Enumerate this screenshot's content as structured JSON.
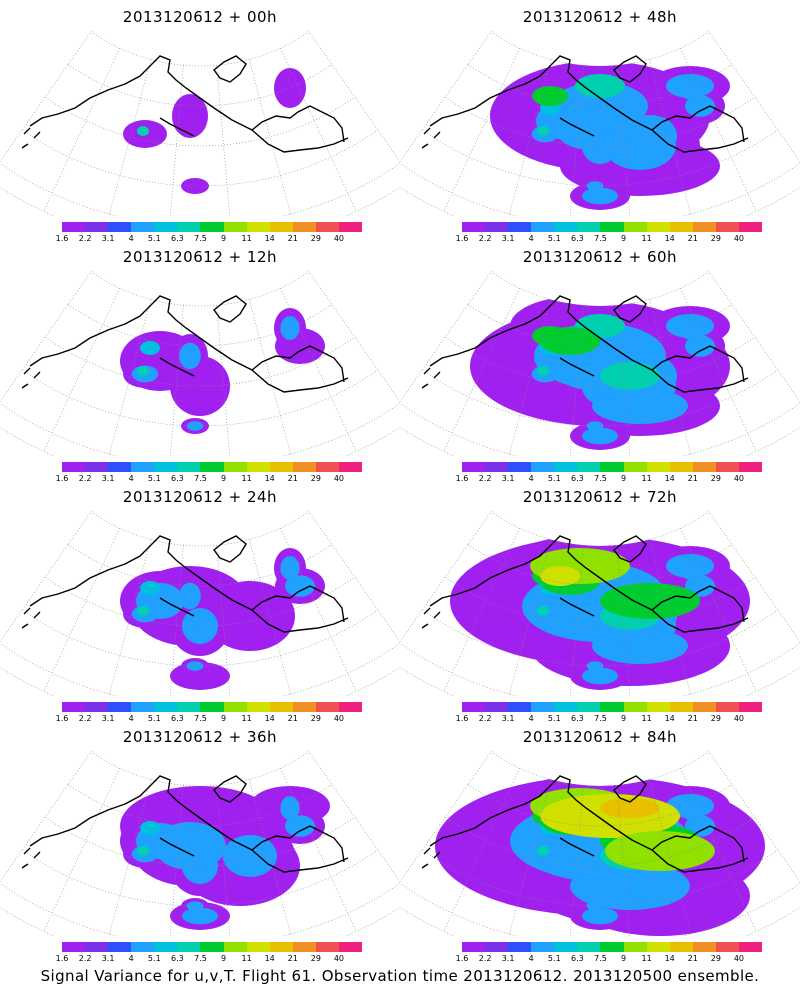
{
  "panels": [
    {
      "title": "2013120612 + 00h",
      "level": 0
    },
    {
      "title": "2013120612 + 48h",
      "level": 4
    },
    {
      "title": "2013120612 + 12h",
      "level": 1
    },
    {
      "title": "2013120612 + 60h",
      "level": 5
    },
    {
      "title": "2013120612 + 24h",
      "level": 2
    },
    {
      "title": "2013120612 + 72h",
      "level": 6
    },
    {
      "title": "2013120612 + 36h",
      "level": 3
    },
    {
      "title": "2013120612 + 84h",
      "level": 7
    }
  ],
  "colorbar": {
    "labels": [
      "1.6",
      "2.2",
      "3.1",
      "4",
      "5.1",
      "6.3",
      "7.5",
      "9",
      "11",
      "14",
      "21",
      "29",
      "40"
    ],
    "colors": [
      "#a020f0",
      "#7c30e8",
      "#3050ff",
      "#20a0ff",
      "#00c0e0",
      "#00d0b0",
      "#00cc30",
      "#90e000",
      "#d0e000",
      "#e8c000",
      "#f09020",
      "#f05050",
      "#f0207f"
    ]
  },
  "footer": "Signal Variance for u,v,T. Flight 61. Observation time 2013120612. 2013120500 ensemble."
}
